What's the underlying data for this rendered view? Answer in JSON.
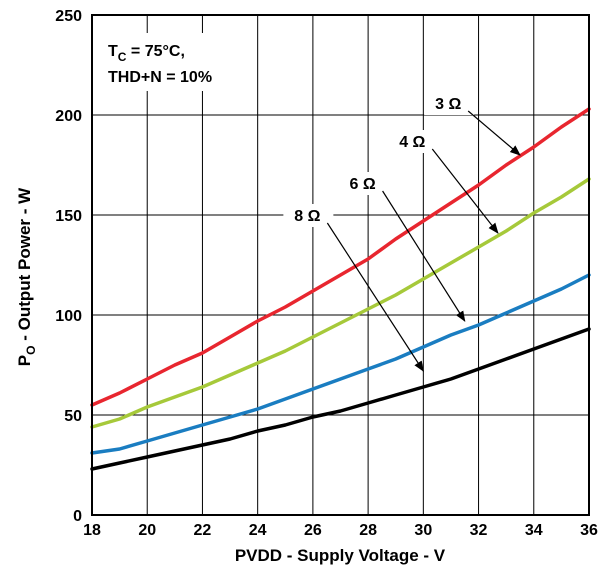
{
  "chart_data": {
    "type": "line",
    "xlabel": "PVDD - Supply Voltage - V",
    "ylabel": {
      "prefix": "P",
      "sub": "O",
      "rest": " - Output Power - W"
    },
    "xlim": [
      18,
      36
    ],
    "ylim": [
      0,
      250
    ],
    "xticks": [
      18,
      20,
      22,
      24,
      26,
      28,
      30,
      32,
      34,
      36
    ],
    "yticks": [
      0,
      50,
      100,
      150,
      200,
      250
    ],
    "grid": true,
    "annotation": {
      "line1_prefix": "T",
      "line1_sub": "C",
      "line1_rest": " = 75°C,",
      "line2": "THD+N = 10%"
    },
    "series": [
      {
        "name": "3 Ω",
        "color": "#e8262f",
        "x": [
          18,
          19,
          20,
          21,
          22,
          23,
          24,
          25,
          26,
          27,
          28,
          29,
          30,
          31,
          32,
          33,
          34,
          35,
          36
        ],
        "y": [
          55,
          61,
          68,
          75,
          81,
          89,
          97,
          104,
          112,
          120,
          128,
          138,
          147,
          156,
          165,
          175,
          184,
          194,
          203
        ]
      },
      {
        "name": "4 Ω",
        "color": "#a6c93a",
        "x": [
          18,
          19,
          20,
          21,
          22,
          23,
          24,
          25,
          26,
          27,
          28,
          29,
          30,
          31,
          32,
          33,
          34,
          35,
          36
        ],
        "y": [
          44,
          48,
          54,
          59,
          64,
          70,
          76,
          82,
          89,
          96,
          103,
          110,
          118,
          126,
          134,
          142,
          151,
          159,
          168
        ]
      },
      {
        "name": "6 Ω",
        "color": "#1a7dc1",
        "x": [
          18,
          19,
          20,
          21,
          22,
          23,
          24,
          25,
          26,
          27,
          28,
          29,
          30,
          31,
          32,
          33,
          34,
          35,
          36
        ],
        "y": [
          31,
          33,
          37,
          41,
          45,
          49,
          53,
          58,
          63,
          68,
          73,
          78,
          84,
          90,
          95,
          101,
          107,
          113,
          120
        ]
      },
      {
        "name": "8 Ω",
        "color": "#000000",
        "x": [
          18,
          19,
          20,
          21,
          22,
          23,
          24,
          25,
          26,
          27,
          28,
          29,
          30,
          31,
          32,
          33,
          34,
          35,
          36
        ],
        "y": [
          23,
          26,
          29,
          32,
          35,
          38,
          42,
          45,
          49,
          52,
          56,
          60,
          64,
          68,
          73,
          78,
          83,
          88,
          93
        ]
      }
    ],
    "labels": [
      {
        "series": "3 Ω",
        "text": "3 Ω",
        "x": 30.9,
        "y": 203,
        "arrow_to": [
          33.5,
          180
        ]
      },
      {
        "series": "4 Ω",
        "text": "4 Ω",
        "x": 29.6,
        "y": 184,
        "arrow_to": [
          32.7,
          141
        ]
      },
      {
        "series": "6 Ω",
        "text": "6 Ω",
        "x": 27.8,
        "y": 163,
        "arrow_to": [
          31.5,
          97
        ]
      },
      {
        "series": "8 Ω",
        "text": "8 Ω",
        "x": 25.8,
        "y": 147,
        "arrow_to": [
          30.0,
          72
        ]
      }
    ]
  }
}
